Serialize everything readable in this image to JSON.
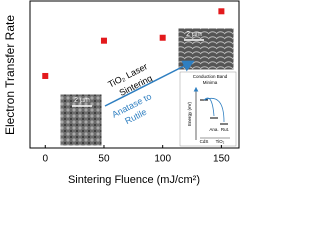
{
  "chart_data": {
    "type": "scatter",
    "ylabel": "Electron Transfer Rate",
    "xlabel": "Sintering Fluence (mJ/cm²)",
    "x": [
      0,
      50,
      100,
      150
    ],
    "values": [
      4.9,
      7.3,
      7.5,
      9.3
    ],
    "color": "#e3191c",
    "xlim": [
      -13,
      165
    ],
    "xticks": [
      0,
      50,
      100,
      150
    ],
    "ylim": [
      0,
      10
    ],
    "annotations": {
      "arrow_top": [
        "TiO₂ Laser",
        "Sintering"
      ],
      "arrow_bottom": [
        "Anatase to",
        "Rutile"
      ],
      "scale_left": "2 µm",
      "scale_right": "2 µm",
      "diagram": {
        "title": [
          "Conduction Band",
          "Minima"
        ],
        "energy": "Energy (eV)",
        "cds": "CdS",
        "ana": "Ana.",
        "rut": "Rut.",
        "tio2": "TiO₂"
      }
    }
  }
}
